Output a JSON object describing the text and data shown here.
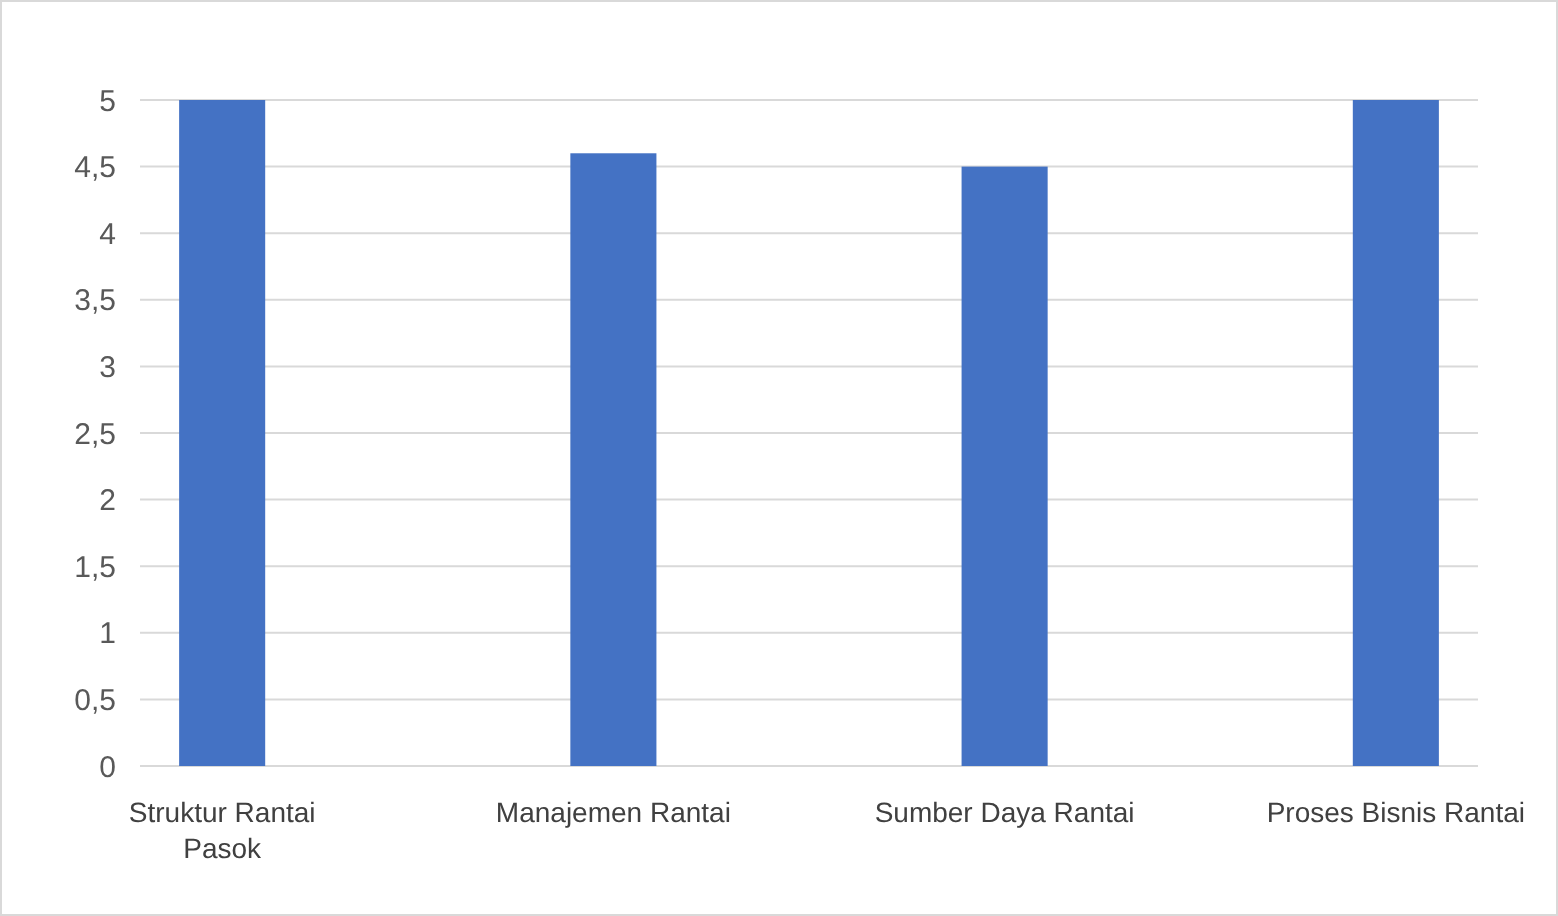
{
  "chart_data": {
    "type": "bar",
    "categories": [
      "Struktur Rantai Pasok",
      "Manajemen Rantai",
      "Sumber Daya Rantai",
      "Proses Bisnis Rantai"
    ],
    "values": [
      5,
      4.6,
      4.5,
      5
    ],
    "color": "#4472c4",
    "ylim": [
      0,
      5
    ],
    "yticks": [
      0,
      {
        "value": 0.5,
        "label": "0,5"
      },
      1,
      {
        "value": 1.5,
        "label": "1,5"
      },
      2,
      {
        "value": 2.5,
        "label": "2,5"
      },
      3,
      {
        "value": 3.5,
        "label": "3,5"
      },
      4,
      {
        "value": 4.5,
        "label": "4,5"
      },
      5
    ],
    "grid": "y"
  }
}
